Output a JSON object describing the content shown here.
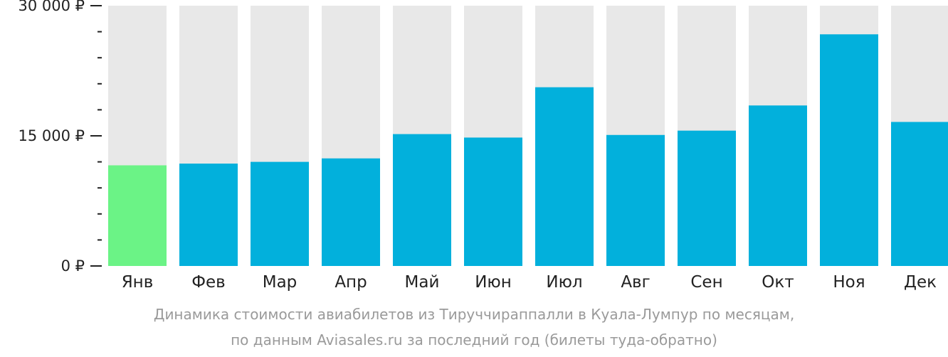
{
  "chart_data": {
    "type": "bar",
    "categories": [
      "Янв",
      "Фев",
      "Мар",
      "Апр",
      "Май",
      "Июн",
      "Июл",
      "Авг",
      "Сен",
      "Окт",
      "Ноя",
      "Дек"
    ],
    "values": [
      11600,
      11800,
      12000,
      12400,
      15200,
      14800,
      20600,
      15100,
      15600,
      18500,
      26700,
      16600
    ],
    "ylim": [
      0,
      30000
    ],
    "yticks": [
      {
        "value": 0,
        "label": "0 ₽"
      },
      {
        "value": 15000,
        "label": "15 000 ₽"
      },
      {
        "value": 30000,
        "label": "30 000 ₽"
      }
    ],
    "minor_tick_step": 3000,
    "highlight_index": 0,
    "colors": {
      "bar": "#02b0dc",
      "highlight": "#6bf386",
      "track": "#e8e8e8",
      "tick": "#222222"
    }
  },
  "caption": {
    "line1": "Динамика стоимости авиабилетов из Тируччираппалли в Куала-Лумпур по месяцам,",
    "line2": "по данным Aviasales.ru за последний год (билеты туда-обратно)"
  }
}
